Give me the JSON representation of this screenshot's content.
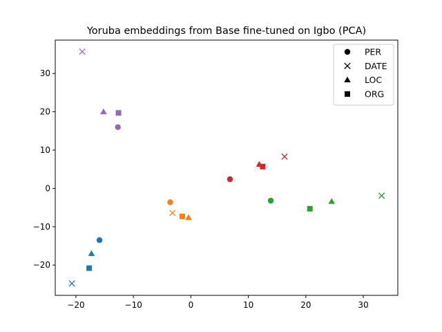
{
  "chart_data": {
    "type": "scatter",
    "title": "Yoruba embeddings from Base fine-tuned on Igbo (PCA)",
    "xlabel": "",
    "ylabel": "",
    "xlim": [
      -23.6,
      36.0
    ],
    "ylim": [
      -27.9,
      38.7
    ],
    "xticks": [
      -20,
      -10,
      0,
      10,
      20,
      30
    ],
    "yticks": [
      -20,
      -10,
      0,
      10,
      20,
      30
    ],
    "xtick_labels": [
      "−20",
      "−10",
      "0",
      "10",
      "20",
      "30"
    ],
    "ytick_labels": [
      "−20",
      "−10",
      "0",
      "10",
      "20",
      "30"
    ],
    "grid": false,
    "legend": {
      "placement": "top-right",
      "entries": [
        {
          "label": "PER",
          "marker": "circle"
        },
        {
          "label": "DATE",
          "marker": "x"
        },
        {
          "label": "LOC",
          "marker": "triangle"
        },
        {
          "label": "ORG",
          "marker": "square"
        }
      ]
    },
    "marker_colors": {
      "blue": "#1f77b4",
      "orange": "#ff7f0e",
      "green": "#2ca02c",
      "red": "#d62728",
      "purple": "#9467bd"
    },
    "points": [
      {
        "x": -15.9,
        "y": -13.5,
        "marker": "circle",
        "color": "blue"
      },
      {
        "x": -20.7,
        "y": -24.8,
        "marker": "x",
        "color": "blue"
      },
      {
        "x": -17.3,
        "y": -17.0,
        "marker": "triangle",
        "color": "blue"
      },
      {
        "x": -17.7,
        "y": -20.8,
        "marker": "square",
        "color": "blue"
      },
      {
        "x": -3.6,
        "y": -3.6,
        "marker": "circle",
        "color": "orange"
      },
      {
        "x": -3.2,
        "y": -6.4,
        "marker": "x",
        "color": "orange"
      },
      {
        "x": -0.4,
        "y": -7.6,
        "marker": "triangle",
        "color": "orange"
      },
      {
        "x": -1.5,
        "y": -7.3,
        "marker": "square",
        "color": "orange"
      },
      {
        "x": 13.9,
        "y": -3.2,
        "marker": "circle",
        "color": "green"
      },
      {
        "x": 33.2,
        "y": -1.9,
        "marker": "x",
        "color": "green"
      },
      {
        "x": 24.5,
        "y": -3.4,
        "marker": "triangle",
        "color": "green"
      },
      {
        "x": 20.7,
        "y": -5.3,
        "marker": "square",
        "color": "green"
      },
      {
        "x": 6.8,
        "y": 2.4,
        "marker": "circle",
        "color": "red"
      },
      {
        "x": 16.3,
        "y": 8.3,
        "marker": "x",
        "color": "red"
      },
      {
        "x": 11.9,
        "y": 6.3,
        "marker": "triangle",
        "color": "red"
      },
      {
        "x": 12.5,
        "y": 5.7,
        "marker": "square",
        "color": "red"
      },
      {
        "x": -12.7,
        "y": 16.0,
        "marker": "circle",
        "color": "purple"
      },
      {
        "x": -18.9,
        "y": 35.7,
        "marker": "x",
        "color": "purple"
      },
      {
        "x": -15.2,
        "y": 20.0,
        "marker": "triangle",
        "color": "purple"
      },
      {
        "x": -12.6,
        "y": 19.7,
        "marker": "square",
        "color": "purple"
      }
    ]
  }
}
